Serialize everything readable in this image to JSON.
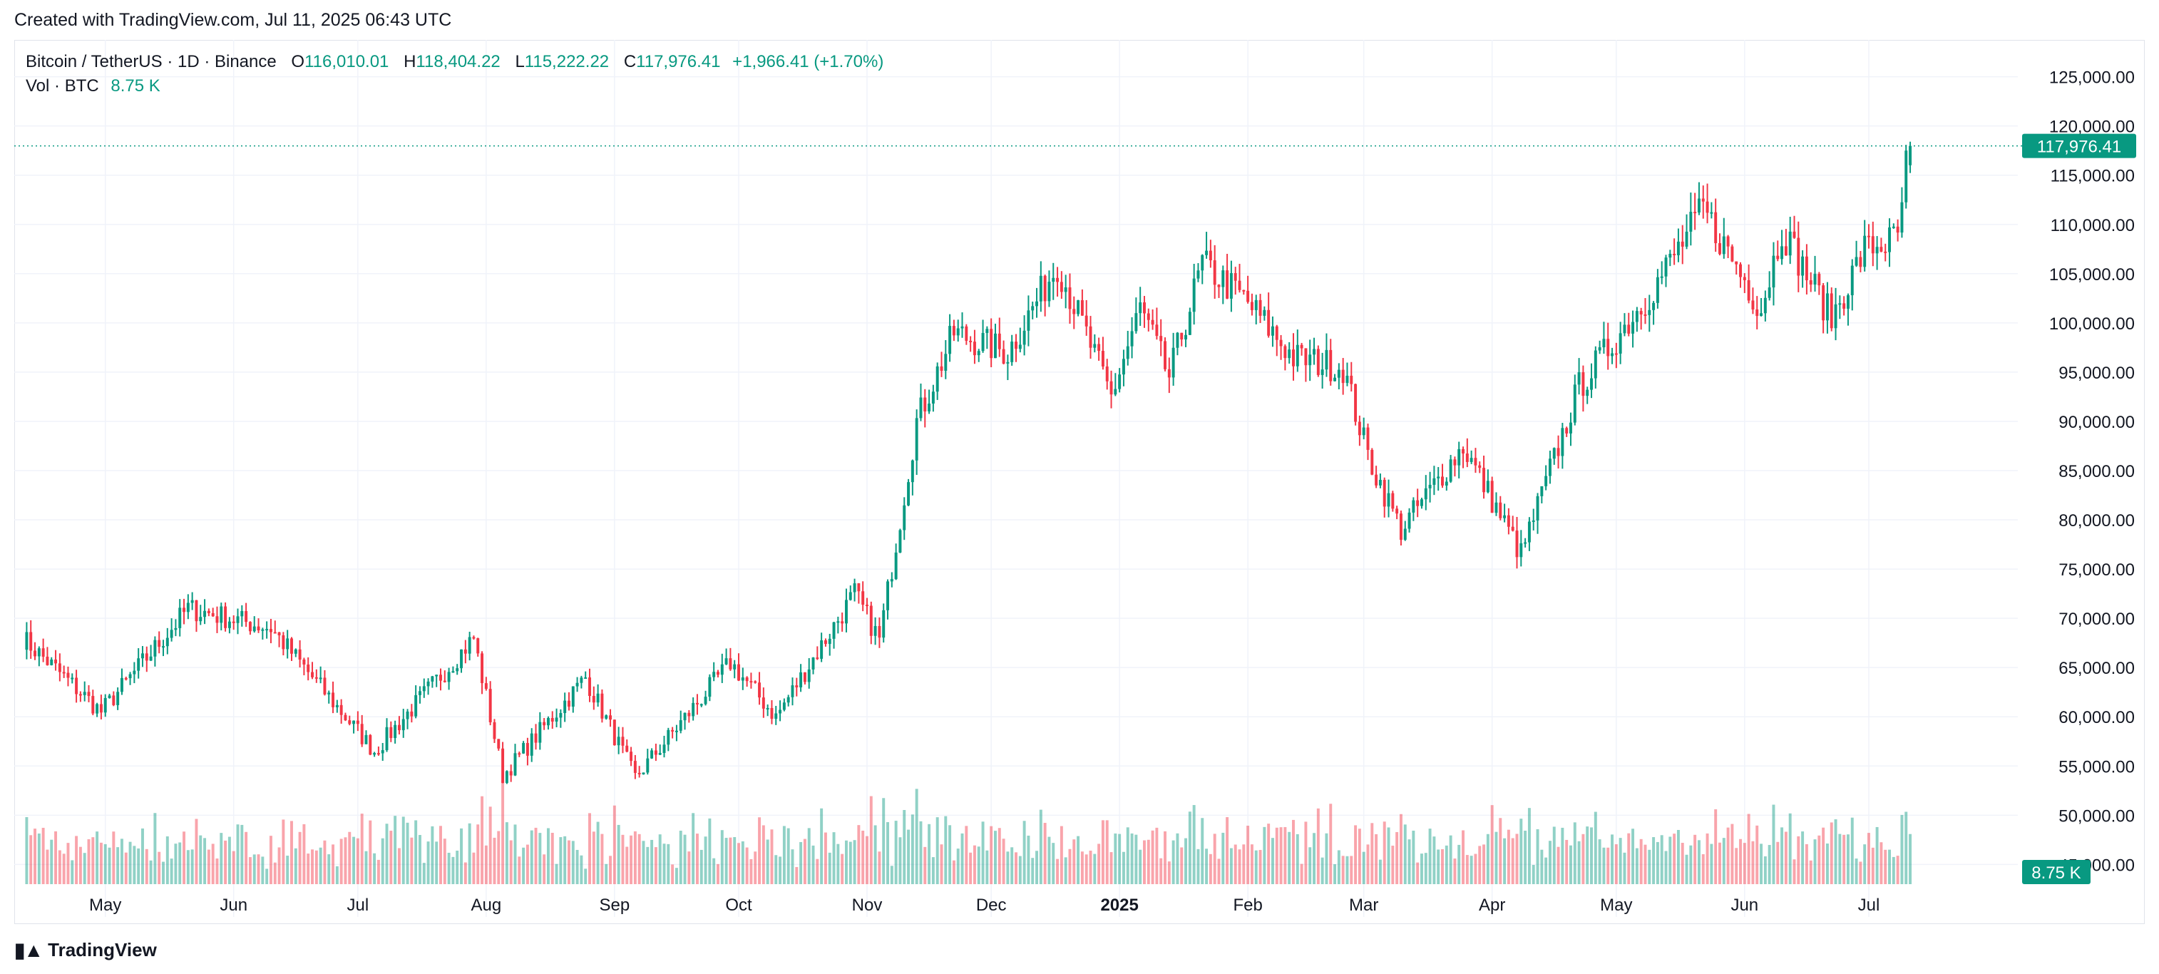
{
  "header": {
    "created": "Created with TradingView.com, Jul 11, 2025 06:43 UTC"
  },
  "legend": {
    "symbol": "Bitcoin / TetherUS · 1D · Binance",
    "open_label": "O",
    "open": "116,010.01",
    "high_label": "H",
    "high": "118,404.22",
    "low_label": "L",
    "low": "115,222.22",
    "close_label": "C",
    "close": "117,976.41",
    "change": "+1,966.41 (+1.70%)",
    "vol_label": "Vol · BTC",
    "vol": "8.75 K"
  },
  "footer": {
    "brand": "TradingView"
  },
  "colors": {
    "up": "#089981",
    "down": "#f23645",
    "grid": "#f0f3fa",
    "text": "#131722"
  },
  "chart_data": {
    "type": "candlestick",
    "symbol": "Bitcoin / TetherUS",
    "interval": "1D",
    "exchange": "Binance",
    "x_tick_labels": [
      "May",
      "Jun",
      "Jul",
      "Aug",
      "Sep",
      "Oct",
      "Nov",
      "Dec",
      "2025",
      "Feb",
      "Mar",
      "Apr",
      "May",
      "Jun",
      "Jul"
    ],
    "y_tick_labels": [
      "125,000.00",
      "120,000.00",
      "115,000.00",
      "110,000.00",
      "105,000.00",
      "100,000.00",
      "95,000.00",
      "90,000.00",
      "85,000.00",
      "80,000.00",
      "75,000.00",
      "70,000.00",
      "65,000.00",
      "60,000.00",
      "55,000.00",
      "50,000.00",
      "45,000.00"
    ],
    "ylim": [
      43000,
      127000
    ],
    "last_price_label": "117,976.41",
    "volume_label": "8.75 K",
    "price_path": [
      {
        "date": "2024-04-11",
        "close": 68000
      },
      {
        "date": "2024-04-30",
        "close": 60500
      },
      {
        "date": "2024-05-21",
        "close": 71000
      },
      {
        "date": "2024-06-10",
        "close": 69000
      },
      {
        "date": "2024-07-05",
        "close": 56500
      },
      {
        "date": "2024-07-29",
        "close": 68000
      },
      {
        "date": "2024-08-05",
        "close": 54000
      },
      {
        "date": "2024-08-25",
        "close": 64000
      },
      {
        "date": "2024-09-06",
        "close": 53800
      },
      {
        "date": "2024-09-29",
        "close": 65500
      },
      {
        "date": "2024-10-10",
        "close": 60000
      },
      {
        "date": "2024-10-29",
        "close": 72500
      },
      {
        "date": "2024-11-04",
        "close": 67800
      },
      {
        "date": "2024-11-13",
        "close": 90000
      },
      {
        "date": "2024-11-22",
        "close": 99000
      },
      {
        "date": "2024-12-05",
        "close": 97000
      },
      {
        "date": "2024-12-17",
        "close": 106000
      },
      {
        "date": "2024-12-30",
        "close": 92500
      },
      {
        "date": "2025-01-06",
        "close": 101500
      },
      {
        "date": "2025-01-13",
        "close": 94500
      },
      {
        "date": "2025-01-21",
        "close": 106000
      },
      {
        "date": "2025-01-31",
        "close": 102500
      },
      {
        "date": "2025-02-12",
        "close": 96500
      },
      {
        "date": "2025-02-24",
        "close": 95500
      },
      {
        "date": "2025-03-02",
        "close": 86500
      },
      {
        "date": "2025-03-10",
        "close": 79000
      },
      {
        "date": "2025-03-25",
        "close": 87500
      },
      {
        "date": "2025-04-08",
        "close": 76500
      },
      {
        "date": "2025-04-22",
        "close": 93500
      },
      {
        "date": "2025-05-10",
        "close": 103500
      },
      {
        "date": "2025-05-22",
        "close": 111500
      },
      {
        "date": "2025-06-05",
        "close": 101500
      },
      {
        "date": "2025-06-10",
        "close": 109500
      },
      {
        "date": "2025-06-22",
        "close": 100500
      },
      {
        "date": "2025-06-30",
        "close": 107500
      },
      {
        "date": "2025-07-08",
        "close": 108500
      },
      {
        "date": "2025-07-10",
        "close": 116010
      },
      {
        "date": "2025-07-11",
        "close": 117976
      }
    ],
    "last_candle": {
      "date": "2025-07-11",
      "open": 116010.01,
      "high": 118404.22,
      "low": 115222.22,
      "close": 117976.41
    }
  }
}
